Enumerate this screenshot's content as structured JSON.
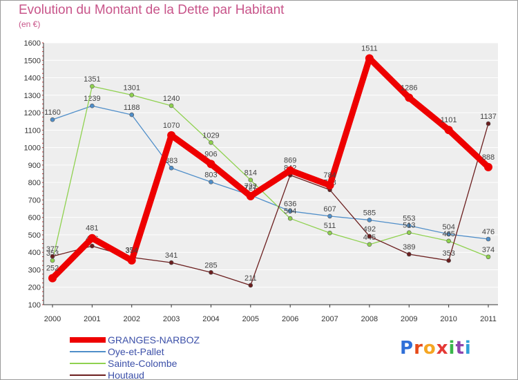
{
  "chart_data": {
    "type": "line",
    "title": "Evolution du Montant de la Dette par Habitant",
    "unit_label": "(en €)",
    "x": [
      "2000",
      "2001",
      "2002",
      "2003",
      "2004",
      "2005",
      "2006",
      "2007",
      "2008",
      "2009",
      "2010",
      "2011"
    ],
    "ylim": [
      100,
      1600
    ],
    "yticks": [
      "100",
      "200",
      "300",
      "400",
      "500",
      "600",
      "700",
      "800",
      "900",
      "1000",
      "1100",
      "1200",
      "1300",
      "1400",
      "1500",
      "1600"
    ],
    "grid": "horizontal",
    "legend_position": "bottom-left",
    "series": [
      {
        "name": "Oye-et-Pallet",
        "color": "#4f8ec9",
        "values": [
          1160,
          1239,
          1188,
          883,
          803,
          727,
          636,
          607,
          585,
          553,
          504,
          476
        ]
      },
      {
        "name": "Sainte-Colombe",
        "color": "#8fd14f",
        "values": [
          353,
          1351,
          1301,
          1240,
          1029,
          814,
          594,
          511,
          445,
          513,
          465,
          374
        ]
      },
      {
        "name": "Houtaud",
        "color": "#6b1e1e",
        "values": [
          377,
          436,
          371,
          341,
          285,
          211,
          842,
          758,
          492,
          389,
          353,
          1137
        ]
      },
      {
        "name": "GRANGES-NARBOZ",
        "color": "#ee0000",
        "values": [
          252,
          481,
          354,
          1070,
          906,
          722,
          869,
          784,
          1511,
          1286,
          1101,
          888
        ]
      }
    ]
  },
  "legend": {
    "items": [
      {
        "label": "GRANGES-NARBOZ",
        "color": "#ee0000"
      },
      {
        "label": "Oye-et-Pallet",
        "color": "#4f8ec9"
      },
      {
        "label": "Sainte-Colombe",
        "color": "#8fd14f"
      },
      {
        "label": "Houtaud",
        "color": "#6b1e1e"
      }
    ]
  },
  "brand": {
    "text": "Proxiti",
    "colors": [
      "#2f6fd8",
      "#e64a19",
      "#f5a623",
      "#e53935",
      "#3ab54a",
      "#8e44ad",
      "#2f9fd8"
    ]
  }
}
